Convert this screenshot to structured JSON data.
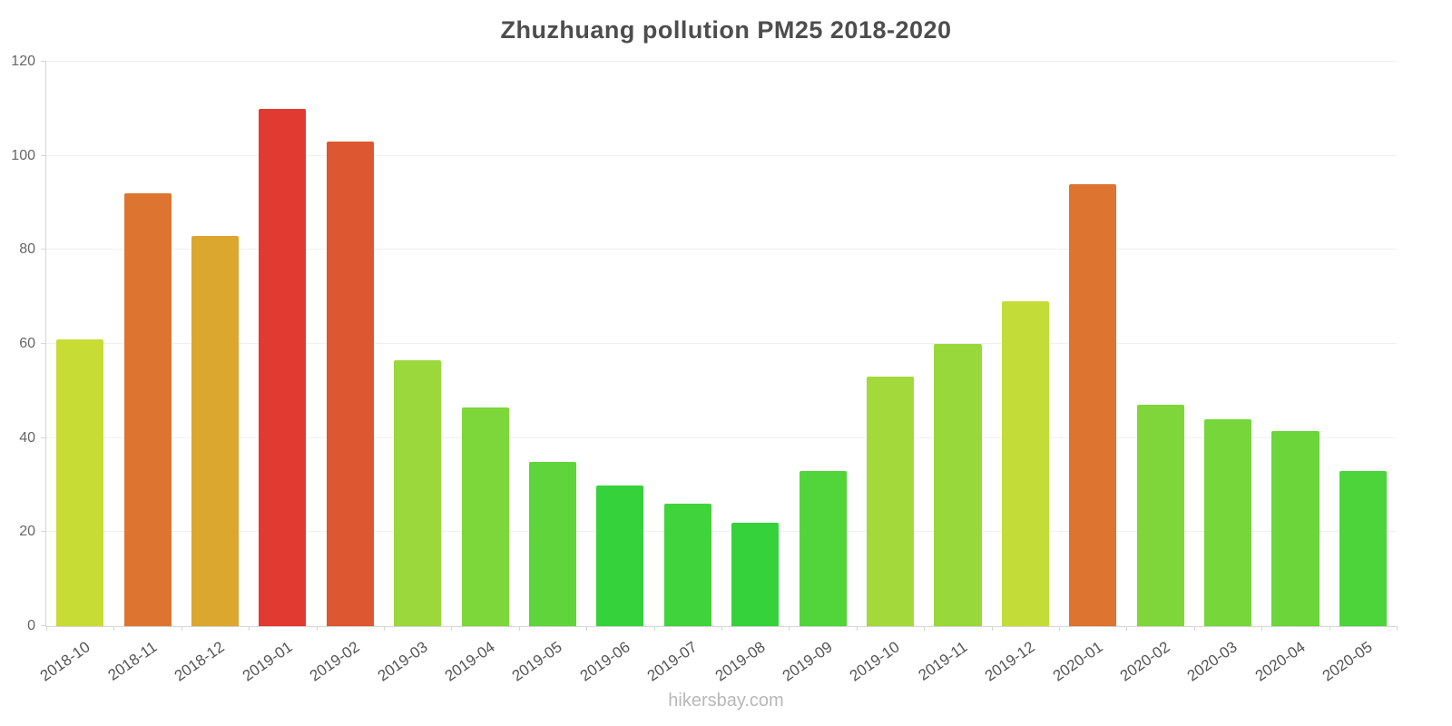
{
  "footer": {
    "text": "hikersbay.com"
  },
  "chart_data": {
    "type": "bar",
    "title": "Zhuzhuang pollution PM25 2018-2020",
    "xlabel": "",
    "ylabel": "",
    "ylim": [
      0,
      120
    ],
    "yticks": [
      0,
      20,
      40,
      60,
      80,
      100,
      120
    ],
    "grid": true,
    "legend": false,
    "categories": [
      "2018-10",
      "2018-11",
      "2018-12",
      "2019-01",
      "2019-02",
      "2019-03",
      "2019-04",
      "2019-05",
      "2019-06",
      "2019-07",
      "2019-08",
      "2019-09",
      "2019-10",
      "2019-11",
      "2019-12",
      "2020-01",
      "2020-02",
      "2020-03",
      "2020-04",
      "2020-05"
    ],
    "values": [
      61,
      92,
      83,
      110,
      103,
      56.5,
      46.5,
      35,
      30,
      26,
      22,
      33,
      53,
      60,
      69,
      94,
      47,
      44,
      41.5,
      33
    ],
    "colors": [
      "#c8dc36",
      "#dd7530",
      "#dca72f",
      "#e03a31",
      "#dd5730",
      "#9ad83b",
      "#7dd63a",
      "#5fd43b",
      "#36d23b",
      "#41d33b",
      "#35d23b",
      "#52d43b",
      "#a3d93b",
      "#98d83b",
      "#c4dc37",
      "#dd7430",
      "#7ed63a",
      "#76d63a",
      "#6bd53a",
      "#4dd43b"
    ]
  }
}
